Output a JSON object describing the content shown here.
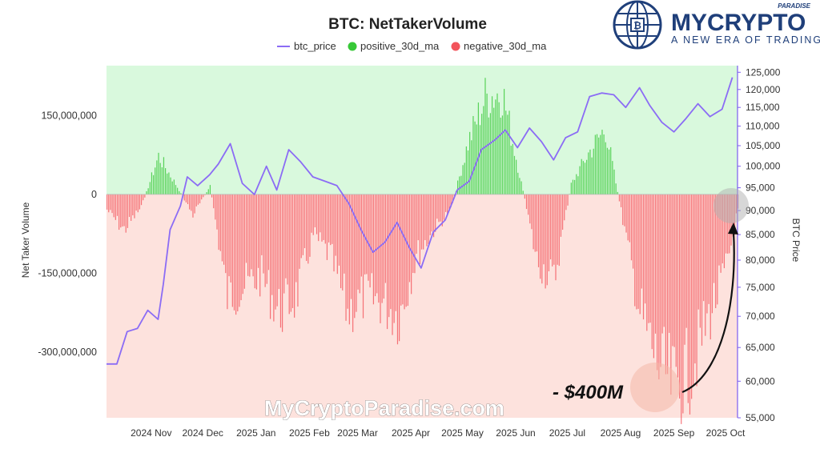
{
  "branding": {
    "name": "MYCRYPTO",
    "top_word": "PARADISE",
    "tagline": "A NEW ERA OF TRADING",
    "watermark": "MyCryptoParadise.com",
    "brand_color": "#1f3f7a"
  },
  "chart_data": {
    "type": "bar+line",
    "title": "BTC: NetTakerVolume",
    "legend": {
      "placement": "top-center",
      "entries": [
        {
          "name": "btc_price",
          "color": "#8b6cf5",
          "kind": "line"
        },
        {
          "name": "positive_30d_ma",
          "color": "#37c837",
          "kind": "dot"
        },
        {
          "name": "negative_30d_ma",
          "color": "#f2545b",
          "kind": "dot"
        }
      ]
    },
    "left_axis": {
      "label": "Net Taker Volume",
      "ticks": [
        150000000,
        0,
        -150000000,
        -300000000
      ],
      "tick_labels": [
        "150,000,000",
        "0",
        "-150,000,000",
        "-300,000,000"
      ],
      "range": [
        -425000000,
        245000000
      ]
    },
    "right_axis": {
      "label": "BTC Price",
      "ticks": [
        55000,
        60000,
        65000,
        70000,
        75000,
        80000,
        85000,
        90000,
        95000,
        100000,
        105000,
        110000,
        115000,
        120000,
        125000
      ],
      "tick_labels": [
        "55,000",
        "60,000",
        "65,000",
        "70,000",
        "75,000",
        "80,000",
        "85,000",
        "90,000",
        "95,000",
        "100,000",
        "105,000",
        "110,000",
        "115,000",
        "120,000",
        "125,000"
      ],
      "scale": "log",
      "range": [
        55000,
        127000
      ]
    },
    "x_axis": {
      "labels": [
        "2024 Nov",
        "2024 Dec",
        "2025 Jan",
        "2025 Feb",
        "2025 Mar",
        "2025 Apr",
        "2025 May",
        "2025 Jun",
        "2025 Jul",
        "2025 Aug",
        "2025 Sep",
        "2025 Oct"
      ],
      "label_dates": [
        "2024-11-01",
        "2024-12-01",
        "2025-01-01",
        "2025-02-01",
        "2025-03-01",
        "2025-04-01",
        "2025-05-01",
        "2025-06-01",
        "2025-07-01",
        "2025-08-01",
        "2025-09-01",
        "2025-10-01"
      ],
      "range": [
        "2024-10-06",
        "2025-10-08"
      ]
    },
    "background": {
      "positive_zone": "#d9f9dd",
      "negative_zone": "#fde2dd"
    },
    "net_taker_volume_30d_ma": {
      "dates": [
        "2024-10-06",
        "2024-10-16",
        "2024-10-26",
        "2024-11-05",
        "2024-11-15",
        "2024-11-25",
        "2024-12-05",
        "2024-12-15",
        "2024-12-25",
        "2025-01-04",
        "2025-01-14",
        "2025-01-24",
        "2025-02-03",
        "2025-02-13",
        "2025-02-23",
        "2025-03-05",
        "2025-03-15",
        "2025-03-25",
        "2025-04-04",
        "2025-04-14",
        "2025-04-24",
        "2025-05-04",
        "2025-05-14",
        "2025-05-24",
        "2025-06-03",
        "2025-06-13",
        "2025-06-23",
        "2025-07-03",
        "2025-07-13",
        "2025-07-23",
        "2025-08-02",
        "2025-08-12",
        "2025-08-22",
        "2025-09-01",
        "2025-09-11",
        "2025-09-21",
        "2025-10-01",
        "2025-10-08"
      ],
      "values": [
        -30000000,
        -70000000,
        -25000000,
        75000000,
        20000000,
        -40000000,
        15000000,
        -200000000,
        -180000000,
        -160000000,
        -230000000,
        -200000000,
        -80000000,
        -120000000,
        -230000000,
        -200000000,
        -210000000,
        -240000000,
        -120000000,
        -70000000,
        -30000000,
        100000000,
        190000000,
        200000000,
        40000000,
        -130000000,
        -170000000,
        20000000,
        80000000,
        130000000,
        -50000000,
        -230000000,
        -330000000,
        -380000000,
        -340000000,
        -240000000,
        -150000000,
        -30000000
      ]
    },
    "btc_price": {
      "dates": [
        "2024-10-06",
        "2024-10-12",
        "2024-10-18",
        "2024-10-24",
        "2024-10-30",
        "2024-11-05",
        "2024-11-08",
        "2024-11-12",
        "2024-11-18",
        "2024-11-22",
        "2024-11-28",
        "2024-12-05",
        "2024-12-10",
        "2024-12-17",
        "2024-12-24",
        "2024-12-31",
        "2025-01-07",
        "2025-01-13",
        "2025-01-20",
        "2025-01-27",
        "2025-02-03",
        "2025-02-10",
        "2025-02-17",
        "2025-02-24",
        "2025-03-03",
        "2025-03-10",
        "2025-03-17",
        "2025-03-24",
        "2025-03-31",
        "2025-04-07",
        "2025-04-14",
        "2025-04-21",
        "2025-04-28",
        "2025-05-05",
        "2025-05-12",
        "2025-05-20",
        "2025-05-26",
        "2025-06-02",
        "2025-06-09",
        "2025-06-16",
        "2025-06-23",
        "2025-06-30",
        "2025-07-07",
        "2025-07-14",
        "2025-07-21",
        "2025-07-28",
        "2025-08-04",
        "2025-08-12",
        "2025-08-18",
        "2025-08-25",
        "2025-09-01",
        "2025-09-08",
        "2025-09-15",
        "2025-09-22",
        "2025-09-29",
        "2025-10-05"
      ],
      "values": [
        62500,
        62500,
        67500,
        68000,
        71000,
        69500,
        75500,
        86000,
        91000,
        97500,
        95500,
        98000,
        100500,
        105500,
        96000,
        93500,
        100000,
        94500,
        104000,
        101000,
        97500,
        96500,
        95500,
        91500,
        86000,
        81500,
        83500,
        87500,
        82500,
        78500,
        85500,
        88000,
        94500,
        96500,
        104000,
        106500,
        109000,
        104500,
        109500,
        106000,
        101500,
        107000,
        108500,
        118000,
        119000,
        118500,
        115000,
        120500,
        115500,
        111000,
        108500,
        112000,
        116000,
        112500,
        114500,
        123500
      ]
    }
  },
  "annotation": {
    "text": "- $400M",
    "highlight_color": "#f4b8a8"
  }
}
